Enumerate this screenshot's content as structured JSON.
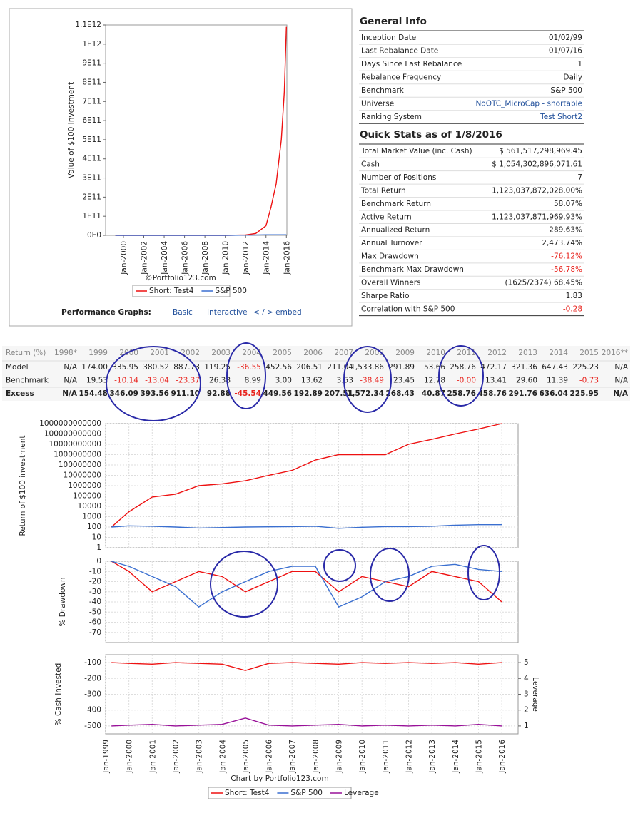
{
  "chart_data": [
    {
      "type": "line",
      "ylabel": "Value of $100 Investment",
      "credit": "©Portfolio123.com",
      "x": [
        1999.2,
        2010,
        2012,
        2013,
        2014,
        2014.5,
        2015,
        2015.5,
        2015.8,
        2016
      ],
      "xlim": [
        1998.25,
        2016.05
      ],
      "xticks": [
        {
          "value": 2000,
          "label": "Jan-2000"
        },
        {
          "value": 2002,
          "label": "Jan-2002"
        },
        {
          "value": 2004,
          "label": "Jan-2004"
        },
        {
          "value": 2006,
          "label": "Jan-2006"
        },
        {
          "value": 2008,
          "label": "Jan-2008"
        },
        {
          "value": 2010,
          "label": "Jan-2010"
        },
        {
          "value": 2012,
          "label": "Jan-2012"
        },
        {
          "value": 2014,
          "label": "Jan-2014"
        },
        {
          "value": 2016,
          "label": "Jan-2016"
        }
      ],
      "ylim": [
        0,
        1100000000000
      ],
      "yticks": [
        {
          "value": 0,
          "label": "0E0"
        },
        {
          "value": 100000000000,
          "label": "1E11"
        },
        {
          "value": 200000000000,
          "label": "2E11"
        },
        {
          "value": 300000000000,
          "label": "3E11"
        },
        {
          "value": 400000000000,
          "label": "4E11"
        },
        {
          "value": 500000000000,
          "label": "5E11"
        },
        {
          "value": 600000000000,
          "label": "6E11"
        },
        {
          "value": 700000000000,
          "label": "7E11"
        },
        {
          "value": 800000000000,
          "label": "8E11"
        },
        {
          "value": 900000000000,
          "label": "9E11"
        },
        {
          "value": 1000000000000,
          "label": "1E12"
        },
        {
          "value": 1100000000000,
          "label": "1.1E12"
        }
      ],
      "grid": false,
      "series": [
        {
          "name": "Short: Test4",
          "color": "#ee1111",
          "values": [
            0,
            0,
            2000000000,
            10000000000,
            50000000000,
            150000000000,
            270000000000,
            500000000000,
            750000000000,
            1090000000000
          ]
        },
        {
          "name": "S&P 500",
          "color": "#3a6fd0",
          "values": [
            0,
            0,
            1000000000,
            2000000000,
            3000000000,
            3000000000,
            3000000000,
            3000000000,
            3000000000,
            3000000000
          ]
        }
      ]
    },
    {
      "type": "line",
      "ylabel": "Return of $100 investment",
      "log_scale": true,
      "grid": true,
      "x": [
        1999.25,
        2000,
        2001,
        2002,
        2003,
        2004,
        2005,
        2006,
        2007,
        2008,
        2009,
        2010,
        2011,
        2012,
        2013,
        2014,
        2015,
        2016
      ],
      "xlim": [
        1999,
        2016.7
      ],
      "ylim": [
        1,
        1000000000000
      ],
      "yticks": [
        1,
        10,
        100,
        1000,
        10000,
        100000,
        1000000,
        10000000,
        100000000,
        1000000000,
        10000000000,
        100000000000,
        1000000000000
      ],
      "series": [
        {
          "name": "Short: Test4",
          "color": "#ee1111",
          "values": [
            100,
            3000,
            80000,
            150000,
            1000000,
            1500000,
            3000000,
            10000000,
            30000000,
            300000000,
            1000000000,
            1000000000,
            1000000000,
            10000000000,
            30000000000,
            100000000000,
            300000000000,
            1000000000000
          ]
        },
        {
          "name": "S&P 500",
          "color": "#3a6fd0",
          "values": [
            100,
            130,
            120,
            100,
            80,
            90,
            100,
            105,
            110,
            120,
            75,
            95,
            110,
            110,
            120,
            150,
            170,
            170
          ]
        }
      ]
    },
    {
      "type": "line",
      "ylabel": "% Drawdown",
      "grid": true,
      "x": [
        1999.25,
        2000,
        2001,
        2002,
        2003,
        2004,
        2005,
        2006,
        2007,
        2008,
        2009,
        2010,
        2011,
        2012,
        2013,
        2014,
        2015,
        2016
      ],
      "xlim": [
        1999,
        2016.7
      ],
      "ylim": [
        -80,
        0
      ],
      "yticks": [
        0,
        -10,
        -20,
        -30,
        -40,
        -50,
        -60,
        -70
      ],
      "series": [
        {
          "color": "#ee1111",
          "values": [
            0,
            -10,
            -30,
            -20,
            -10,
            -15,
            -30,
            -20,
            -10,
            -10,
            -30,
            -15,
            -20,
            -25,
            -10,
            -15,
            -20,
            -40
          ]
        },
        {
          "color": "#3a6fd0",
          "values": [
            0,
            -5,
            -15,
            -25,
            -45,
            -30,
            -20,
            -10,
            -5,
            -5,
            -45,
            -35,
            -20,
            -15,
            -5,
            -3,
            -8,
            -10
          ]
        }
      ]
    },
    {
      "type": "line",
      "ylabel": "% Cash Invested",
      "y2label": "Leverage",
      "grid": true,
      "credit": "Chart by Portfolio123.com",
      "x": [
        1999.25,
        2000,
        2001,
        2002,
        2003,
        2004,
        2005,
        2006,
        2007,
        2008,
        2009,
        2010,
        2011,
        2012,
        2013,
        2014,
        2015,
        2016
      ],
      "xlim": [
        1999,
        2016.7
      ],
      "xticks": [
        {
          "value": 1999,
          "label": "Jan-1999"
        },
        {
          "value": 2000,
          "label": "Jan-2000"
        },
        {
          "value": 2001,
          "label": "Jan-2001"
        },
        {
          "value": 2002,
          "label": "Jan-2002"
        },
        {
          "value": 2003,
          "label": "Jan-2003"
        },
        {
          "value": 2004,
          "label": "Jan-2004"
        },
        {
          "value": 2005,
          "label": "Jan-2005"
        },
        {
          "value": 2006,
          "label": "Jan-2006"
        },
        {
          "value": 2007,
          "label": "Jan-2007"
        },
        {
          "value": 2008,
          "label": "Jan-2008"
        },
        {
          "value": 2009,
          "label": "Jan-2009"
        },
        {
          "value": 2010,
          "label": "Jan-2010"
        },
        {
          "value": 2011,
          "label": "Jan-2011"
        },
        {
          "value": 2012,
          "label": "Jan-2012"
        },
        {
          "value": 2013,
          "label": "Jan-2013"
        },
        {
          "value": 2014,
          "label": "Jan-2014"
        },
        {
          "value": 2015,
          "label": "Jan-2015"
        },
        {
          "value": 2016,
          "label": "Jan-2016"
        }
      ],
      "ylim": [
        -550,
        -50
      ],
      "yticks": [
        -100,
        -200,
        -300,
        -400,
        -500
      ],
      "y2lim": [
        0.5,
        5.5
      ],
      "y2ticks": [
        1,
        2,
        3,
        4,
        5
      ],
      "series": [
        {
          "color": "#ee1111",
          "values": [
            -100,
            -105,
            -110,
            -100,
            -105,
            -110,
            -150,
            -105,
            -100,
            -105,
            -110,
            -100,
            -105,
            -100,
            -105,
            -100,
            -110,
            -100
          ]
        },
        {
          "name": "Leverage",
          "color": "#991199",
          "axis": "y2",
          "values": [
            1,
            1.05,
            1.1,
            1,
            1.05,
            1.1,
            1.5,
            1.05,
            1,
            1.05,
            1.1,
            1,
            1.05,
            1,
            1.05,
            1,
            1.1,
            1
          ]
        }
      ]
    }
  ],
  "performance_graphs": {
    "label": "Performance Graphs:",
    "links": [
      "Basic",
      "Interactive",
      "< / > embed"
    ]
  },
  "general_info": {
    "title": "General Info",
    "rows": [
      [
        "Inception Date",
        "01/02/99"
      ],
      [
        "Last Rebalance Date",
        "01/07/16"
      ],
      [
        "Days Since Last Rebalance",
        "1"
      ],
      [
        "Rebalance Frequency",
        "Daily"
      ],
      [
        "Benchmark",
        "S&P 500"
      ],
      [
        "Universe",
        "NoOTC_MicroCap - shortable"
      ],
      [
        "Ranking System",
        "Test Short2"
      ]
    ]
  },
  "quick_stats": {
    "title": "Quick Stats as of 1/8/2016",
    "rows": [
      [
        "Total Market Value (inc. Cash)",
        "$ 561,517,298,969.45"
      ],
      [
        "Cash",
        "$ 1,054,302,896,071.61"
      ],
      [
        "Number of Positions",
        "7"
      ],
      [
        "Total Return",
        "1,123,037,872,028.00%"
      ],
      [
        "Benchmark Return",
        "58.07%"
      ],
      [
        "Active Return",
        "1,123,037,871,969.93%"
      ],
      [
        "Annualized Return",
        "289.63%"
      ],
      [
        "Annual Turnover",
        "2,473.74%"
      ],
      [
        "Max Drawdown",
        "-76.12%"
      ],
      [
        "Benchmark Max Drawdown",
        "-56.78%"
      ],
      [
        "Overall Winners",
        "(1625/2374) 68.45%"
      ],
      [
        "Sharpe Ratio",
        "1.83"
      ],
      [
        "Correlation with S&P 500",
        "-0.28"
      ]
    ]
  },
  "returns_table": {
    "header": [
      "Return (%)",
      "1998*",
      "1999",
      "2000",
      "2001",
      "2002",
      "2003",
      "2004",
      "2005",
      "2006",
      "2007",
      "2008",
      "2009",
      "2010",
      "2011",
      "2012",
      "2013",
      "2014",
      "2015",
      "2016**"
    ],
    "rows": [
      [
        "Model",
        "N/A",
        "174.00",
        "335.95",
        "380.52",
        "887.73",
        "119.25",
        "-36.55",
        "452.56",
        "206.51",
        "211.04",
        "1,533.86",
        "291.89",
        "53.66",
        "258.76",
        "472.17",
        "321.36",
        "647.43",
        "225.23",
        "N/A"
      ],
      [
        "Benchmark",
        "N/A",
        "19.53",
        "-10.14",
        "-13.04",
        "-23.37",
        "26.38",
        "8.99",
        "3.00",
        "13.62",
        "3.53",
        "-38.49",
        "23.45",
        "12.78",
        "-0.00",
        "13.41",
        "29.60",
        "11.39",
        "-0.73",
        "N/A"
      ],
      [
        "Excess",
        "N/A",
        "154.48",
        "346.09",
        "393.56",
        "911.10",
        "92.88",
        "-45.54",
        "449.56",
        "192.89",
        "207.51",
        "1,572.34",
        "268.43",
        "40.87",
        "258.76",
        "458.76",
        "291.76",
        "636.04",
        "225.95",
        "N/A"
      ]
    ]
  }
}
